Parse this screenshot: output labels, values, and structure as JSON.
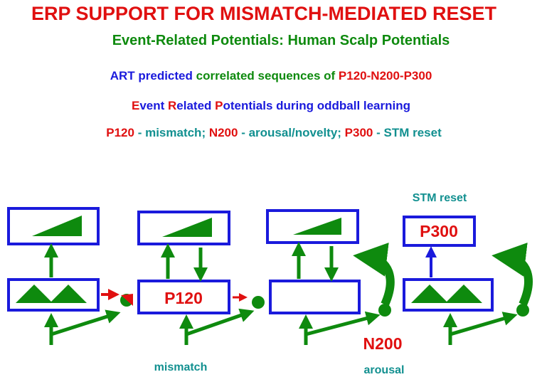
{
  "title": "ERP SUPPORT FOR MISMATCH-MEDIATED RESET",
  "subtitle": "Event-Related Potentials: Human Scalp Potentials",
  "lines": [
    [
      {
        "text": "ART predicted ",
        "color": "#1a1adc"
      },
      {
        "text": "correlated sequences of ",
        "color": "#0e8a0e"
      },
      {
        "text": "P120-N200-P300",
        "color": "#e01010"
      }
    ],
    [
      {
        "text": "E",
        "color": "#e01010"
      },
      {
        "text": "vent ",
        "color": "#1a1adc"
      },
      {
        "text": "R",
        "color": "#e01010"
      },
      {
        "text": "elated ",
        "color": "#1a1adc"
      },
      {
        "text": "P",
        "color": "#e01010"
      },
      {
        "text": "otentials during oddball learning",
        "color": "#1a1adc"
      }
    ],
    [
      {
        "text": "P120",
        "color": "#e01010"
      },
      {
        "text": " - mismatch; ",
        "color": "#129090"
      },
      {
        "text": "N200",
        "color": "#e01010"
      },
      {
        "text": " - arousal/novelty; ",
        "color": "#129090"
      },
      {
        "text": "P300",
        "color": "#e01010"
      },
      {
        "text": " - STM reset",
        "color": "#129090"
      }
    ]
  ],
  "diagram": {
    "stm_reset": "STM reset",
    "p300": "P300",
    "p120": "P120",
    "n200": "N200",
    "mismatch": "mismatch",
    "arousal": "arousal"
  }
}
